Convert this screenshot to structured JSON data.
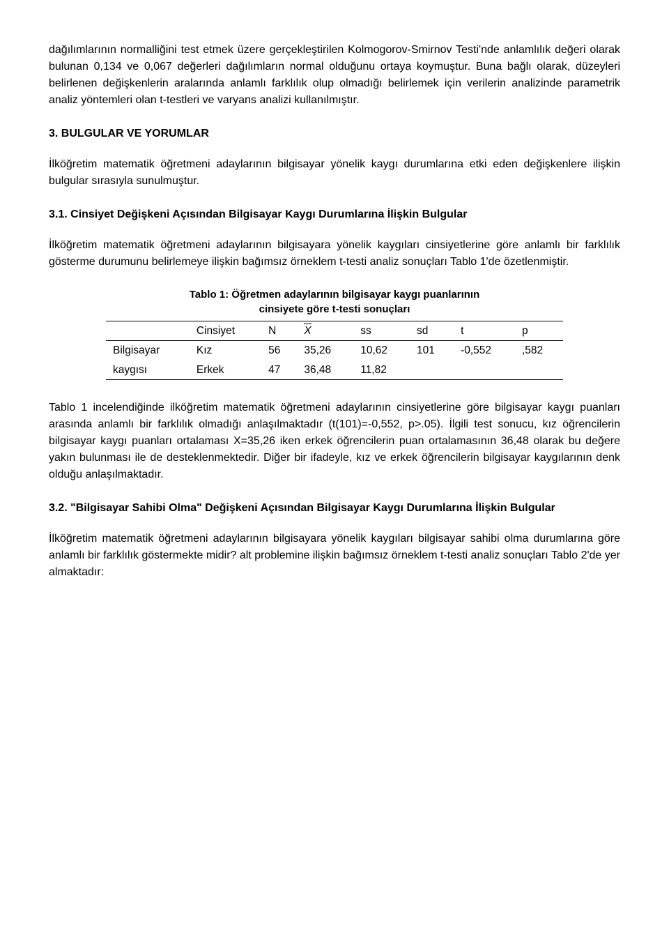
{
  "paragraphs": {
    "p1": "dağılımlarının normalliğini test etmek üzere gerçekleştirilen Kolmogorov-Smirnov Testi'nde anlamlılık değeri olarak bulunan 0,134 ve 0,067 değerleri dağılımların normal olduğunu ortaya koymuştur. Buna bağlı olarak, düzeyleri belirlenen değişkenlerin aralarında anlamlı farklılık olup olmadığı belirlemek için verilerin analizinde parametrik analiz yöntemleri olan t-testleri ve varyans analizi kullanılmıştır.",
    "sec3_title": "3. BULGULAR VE YORUMLAR",
    "p2": "İlköğretim matematik öğretmeni adaylarının bilgisayar yönelik kaygı durumlarına etki eden değişkenlere ilişkin bulgular sırasıyla sunulmuştur.",
    "sec31_title": "3.1. Cinsiyet Değişkeni Açısından Bilgisayar Kaygı Durumlarına İlişkin Bulgular",
    "p3": "İlköğretim matematik öğretmeni adaylarının bilgisayara yönelik kaygıları cinsiyetlerine göre anlamlı bir farklılık gösterme durumunu belirlemeye ilişkin bağımsız örneklem t-testi analiz sonuçları Tablo 1'de özetlenmiştir.",
    "p4": "Tablo 1 incelendiğinde ilköğretim matematik öğretmeni adaylarının cinsiyetlerine göre bilgisayar kaygı puanları arasında anlamlı bir farklılık olmadığı anlaşılmaktadır (t(101)=-0,552, p>.05). İlgili test sonucu, kız öğrencilerin bilgisayar kaygı puanları ortalaması X=35,26 iken erkek öğrencilerin puan ortalamasının 36,48 olarak bu değere yakın bulunması ile de desteklenmektedir. Diğer bir ifadeyle, kız ve erkek öğrencilerin bilgisayar kaygılarının denk olduğu anlaşılmaktadır.",
    "sec32_title": "3.2. \"Bilgisayar Sahibi Olma\" Değişkeni Açısından Bilgisayar Kaygı Durumlarına İlişkin Bulgular",
    "p5": "İlköğretim matematik öğretmeni adaylarının bilgisayara yönelik kaygıları bilgisayar sahibi olma durumlarına göre anlamlı bir farklılık göstermekte midir? alt problemine ilişkin bağımsız örneklem t-testi analiz sonuçları Tablo 2'de yer almaktadır:"
  },
  "table1": {
    "title_line1": "Tablo 1: Öğretmen adaylarının bilgisayar kaygı puanlarının",
    "title_line2": "cinsiyete göre t-testi sonuçları",
    "headers": {
      "c0": "",
      "c1": "Cinsiyet",
      "c2": "N",
      "c3": "X",
      "c4": "ss",
      "c5": "sd",
      "c6": "t",
      "c7": "p"
    },
    "rows": [
      {
        "c0": "Bilgisayar",
        "c1": "Kız",
        "c2": "56",
        "c3": "35,26",
        "c4": "10,62",
        "c5": "101",
        "c6": "-0,552",
        "c7": ",582"
      },
      {
        "c0": "kaygısı",
        "c1": "Erkek",
        "c2": "47",
        "c3": "36,48",
        "c4": "11,82",
        "c5": "",
        "c6": "",
        "c7": ""
      }
    ]
  }
}
